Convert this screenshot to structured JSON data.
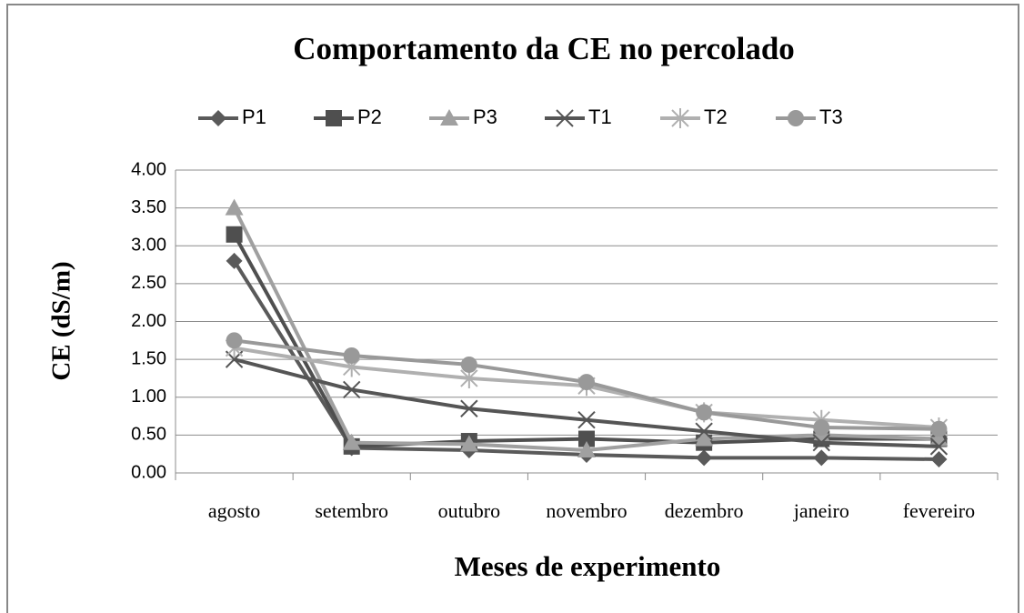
{
  "chart_data": {
    "type": "line",
    "title": "Comportamento  da CE no percolado",
    "xlabel": "Meses de experimento",
    "ylabel": "CE (dS/m)",
    "categories": [
      "agosto",
      "setembro",
      "outubro",
      "novembro",
      "dezembro",
      "janeiro",
      "fevereiro"
    ],
    "series": [
      {
        "name": "P1",
        "color": "#5a5a5a",
        "marker": "diamond",
        "values": [
          2.8,
          0.33,
          0.3,
          0.24,
          0.2,
          0.2,
          0.18
        ]
      },
      {
        "name": "P2",
        "color": "#4f4f4f",
        "marker": "square",
        "values": [
          3.15,
          0.35,
          0.42,
          0.45,
          0.4,
          0.45,
          0.45
        ]
      },
      {
        "name": "P3",
        "color": "#a0a0a0",
        "marker": "triangle",
        "values": [
          3.5,
          0.4,
          0.38,
          0.3,
          0.45,
          0.5,
          0.45
        ]
      },
      {
        "name": "T1",
        "color": "#555555",
        "marker": "x",
        "values": [
          1.5,
          1.1,
          0.85,
          0.7,
          0.55,
          0.4,
          0.35
        ]
      },
      {
        "name": "T2",
        "color": "#b0b0b0",
        "marker": "star",
        "values": [
          1.65,
          1.4,
          1.25,
          1.15,
          0.8,
          0.7,
          0.6
        ]
      },
      {
        "name": "T3",
        "color": "#999999",
        "marker": "circle",
        "values": [
          1.75,
          1.55,
          1.43,
          1.2,
          0.8,
          0.6,
          0.58
        ]
      }
    ],
    "ylim": [
      0,
      4
    ],
    "yticks": [
      {
        "value": 0,
        "label": "0.00"
      },
      {
        "value": 0.5,
        "label": "0.50"
      },
      {
        "value": 1,
        "label": "1.00"
      },
      {
        "value": 1.5,
        "label": "1.50"
      },
      {
        "value": 2,
        "label": "2.00"
      },
      {
        "value": 2.5,
        "label": "2.50"
      },
      {
        "value": 3,
        "label": "3.00"
      },
      {
        "value": 3.5,
        "label": "3.50"
      },
      {
        "value": 4,
        "label": "4.00"
      }
    ],
    "grid": true,
    "legend": "top"
  }
}
